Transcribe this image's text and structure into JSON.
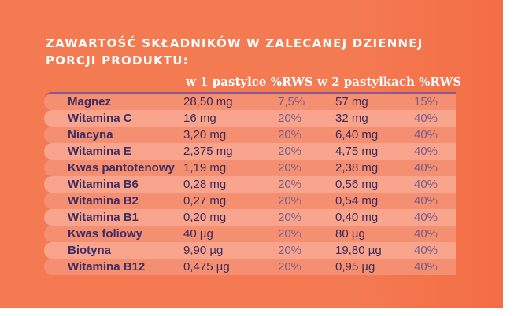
{
  "title": {
    "line1": "ZAWARTOŚĆ SKŁADNIKÓW W ZALECANEJ DZIENNEJ",
    "line2": "PORCJI PRODUKTU:"
  },
  "header": "w 1 pastylce %RWS w 2 pastylkach %RWS",
  "rows": [
    {
      "name": "Magnez",
      "v1": "28,50 mg",
      "p1": "7,5%",
      "v2": "57 mg",
      "p2": "15%"
    },
    {
      "name": "Witamina C",
      "v1": "16 mg",
      "p1": "20%",
      "v2": "32 mg",
      "p2": "40%"
    },
    {
      "name": "Niacyna",
      "v1": "3,20 mg",
      "p1": "20%",
      "v2": "6,40 mg",
      "p2": "40%"
    },
    {
      "name": "Witamina E",
      "v1": "2,375 mg",
      "p1": "20%",
      "v2": "4,75 mg",
      "p2": "40%"
    },
    {
      "name": "Kwas pantotenowy",
      "v1": "1,19 mg",
      "p1": "20%",
      "v2": "2,38 mg",
      "p2": "40%"
    },
    {
      "name": "Witamina B6",
      "v1": "0,28 mg",
      "p1": "20%",
      "v2": "0,56 mg",
      "p2": "40%"
    },
    {
      "name": "Witamina B2",
      "v1": "0,27 mg",
      "p1": "20%",
      "v2": "0,54 mg",
      "p2": "40%"
    },
    {
      "name": "Witamina B1",
      "v1": "0,20 mg",
      "p1": "20%",
      "v2": "0,40 mg",
      "p2": "40%"
    },
    {
      "name": "Kwas foliowy",
      "v1": "40 µg",
      "p1": "20%",
      "v2": "80 µg",
      "p2": "40%"
    },
    {
      "name": "Biotyna",
      "v1": "9,90 µg",
      "p1": "20%",
      "v2": "19,80 µg",
      "p2": "40%"
    },
    {
      "name": "Witamina B12",
      "v1": "0,475 µg",
      "p1": "20%",
      "v2": "0,95 µg",
      "p2": "40%"
    }
  ],
  "colors": {
    "background": "#f47a52",
    "row_light": "#f9a58d",
    "row_dark": "#f58f72",
    "text_dark": "#3f2e63",
    "title_text": "#ffffff"
  }
}
